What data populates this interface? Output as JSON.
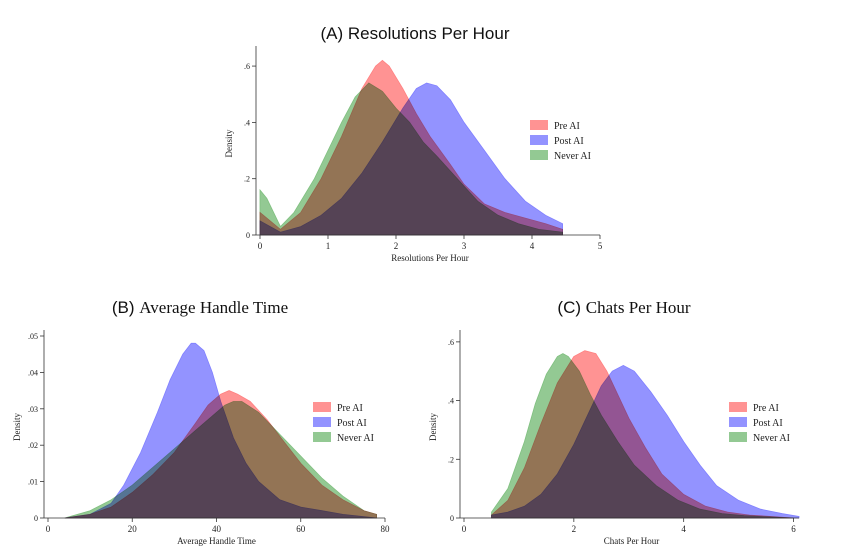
{
  "chart_data": [
    {
      "id": "A",
      "type": "area",
      "title_letter": "(A)",
      "title_name": "Resolutions Per Hour",
      "xlabel": "Resolutions Per Hour",
      "ylabel": "Density",
      "xlim": [
        0,
        5
      ],
      "ylim": [
        0,
        0.65
      ],
      "xticks": [
        0,
        1,
        2,
        3,
        4,
        5
      ],
      "xtick_labels": [
        "0",
        "1",
        "2",
        "3",
        "4",
        "5"
      ],
      "yticks": [
        0,
        0.2,
        0.4,
        0.6
      ],
      "ytick_labels": [
        "0",
        ".2",
        ".4",
        ".6"
      ],
      "legend_position": "right",
      "series": [
        {
          "name": "Pre AI",
          "color": "#ff8080",
          "x": [
            0,
            0.15,
            0.3,
            0.6,
            0.9,
            1.2,
            1.5,
            1.7,
            1.8,
            1.9,
            2.1,
            2.3,
            2.5,
            2.8,
            3.0,
            3.3,
            3.6,
            3.9,
            4.2,
            4.45
          ],
          "y": [
            0.08,
            0.05,
            0.02,
            0.08,
            0.2,
            0.35,
            0.52,
            0.6,
            0.62,
            0.6,
            0.52,
            0.43,
            0.35,
            0.25,
            0.18,
            0.11,
            0.08,
            0.06,
            0.04,
            0.02
          ]
        },
        {
          "name": "Post AI",
          "color": "#8080ff",
          "x": [
            0,
            0.15,
            0.3,
            0.6,
            0.9,
            1.2,
            1.5,
            1.8,
            2.1,
            2.3,
            2.45,
            2.6,
            2.8,
            3.0,
            3.3,
            3.6,
            3.9,
            4.2,
            4.45
          ],
          "y": [
            0.05,
            0.03,
            0.01,
            0.03,
            0.07,
            0.13,
            0.22,
            0.33,
            0.45,
            0.52,
            0.54,
            0.53,
            0.48,
            0.4,
            0.3,
            0.2,
            0.12,
            0.07,
            0.04
          ]
        },
        {
          "name": "Never AI",
          "color": "#80c080",
          "x": [
            0,
            0.1,
            0.3,
            0.5,
            0.8,
            1.0,
            1.2,
            1.4,
            1.6,
            1.8,
            2.0,
            2.2,
            2.4,
            2.6,
            2.9,
            3.2,
            3.5,
            3.8,
            4.1,
            4.45
          ],
          "y": [
            0.16,
            0.13,
            0.03,
            0.08,
            0.2,
            0.3,
            0.4,
            0.49,
            0.54,
            0.51,
            0.45,
            0.4,
            0.33,
            0.28,
            0.2,
            0.12,
            0.07,
            0.04,
            0.02,
            0.01
          ]
        }
      ]
    },
    {
      "id": "B",
      "type": "area",
      "title_letter": "(B)",
      "title_name": "Average Handle Time",
      "xlabel": "Average Handle Time",
      "ylabel": "Density",
      "xlim": [
        0,
        80
      ],
      "ylim": [
        0,
        0.05
      ],
      "xticks": [
        0,
        20,
        40,
        60,
        80
      ],
      "xtick_labels": [
        "0",
        "20",
        "40",
        "60",
        "80"
      ],
      "yticks": [
        0,
        0.01,
        0.02,
        0.03,
        0.04,
        0.05
      ],
      "ytick_labels": [
        "0",
        ".01",
        ".02",
        ".03",
        ".04",
        ".05"
      ],
      "legend_position": "right",
      "series": [
        {
          "name": "Pre AI",
          "color": "#ff8080",
          "x": [
            4,
            10,
            15,
            20,
            25,
            30,
            35,
            38,
            41,
            43,
            45,
            48,
            52,
            56,
            60,
            65,
            70,
            75,
            78
          ],
          "y": [
            0,
            0.001,
            0.003,
            0.007,
            0.012,
            0.018,
            0.026,
            0.031,
            0.034,
            0.035,
            0.034,
            0.032,
            0.027,
            0.021,
            0.015,
            0.009,
            0.005,
            0.002,
            0.001
          ]
        },
        {
          "name": "Post AI",
          "color": "#8080ff",
          "x": [
            4,
            10,
            15,
            18,
            22,
            26,
            29,
            32,
            34,
            35,
            37,
            39,
            41,
            44,
            47,
            50,
            55,
            60,
            65,
            70,
            78
          ],
          "y": [
            0,
            0.001,
            0.004,
            0.009,
            0.018,
            0.029,
            0.038,
            0.045,
            0.048,
            0.048,
            0.046,
            0.04,
            0.032,
            0.022,
            0.015,
            0.01,
            0.005,
            0.003,
            0.002,
            0.001,
            0
          ]
        },
        {
          "name": "Never AI",
          "color": "#80c080",
          "x": [
            4,
            10,
            15,
            20,
            25,
            30,
            35,
            40,
            42,
            44,
            46,
            50,
            55,
            60,
            65,
            70,
            75,
            78
          ],
          "y": [
            0,
            0.002,
            0.005,
            0.009,
            0.014,
            0.019,
            0.024,
            0.029,
            0.031,
            0.032,
            0.032,
            0.029,
            0.023,
            0.017,
            0.011,
            0.006,
            0.002,
            0.001
          ]
        }
      ]
    },
    {
      "id": "C",
      "type": "area",
      "title_letter": "(C)",
      "title_name": "Chats Per Hour",
      "xlabel": "Chats Per Hour",
      "ylabel": "Density",
      "xlim": [
        0,
        6.1
      ],
      "ylim": [
        0,
        0.62
      ],
      "xticks": [
        0,
        2,
        4,
        6
      ],
      "xtick_labels": [
        "0",
        "2",
        "4",
        "6"
      ],
      "yticks": [
        0,
        0.2,
        0.4,
        0.6
      ],
      "ytick_labels": [
        "0",
        ".2",
        ".4",
        ".6"
      ],
      "legend_position": "right",
      "series": [
        {
          "name": "Pre AI",
          "color": "#ff8080",
          "x": [
            0.5,
            0.8,
            1.1,
            1.4,
            1.7,
            2.0,
            2.2,
            2.4,
            2.6,
            2.8,
            3.0,
            3.3,
            3.6,
            4.0,
            4.4,
            4.8,
            5.2,
            5.6,
            6.0
          ],
          "y": [
            0.01,
            0.06,
            0.17,
            0.32,
            0.46,
            0.55,
            0.57,
            0.56,
            0.5,
            0.42,
            0.34,
            0.24,
            0.15,
            0.08,
            0.04,
            0.02,
            0.01,
            0.005,
            0
          ]
        },
        {
          "name": "Post AI",
          "color": "#8080ff",
          "x": [
            0.5,
            0.8,
            1.1,
            1.4,
            1.7,
            2.0,
            2.3,
            2.5,
            2.7,
            2.9,
            3.1,
            3.4,
            3.7,
            4.0,
            4.3,
            4.6,
            5.0,
            5.4,
            5.8,
            6.1
          ],
          "y": [
            0.01,
            0.02,
            0.04,
            0.08,
            0.15,
            0.25,
            0.37,
            0.45,
            0.5,
            0.52,
            0.5,
            0.43,
            0.35,
            0.26,
            0.18,
            0.11,
            0.06,
            0.03,
            0.015,
            0.005
          ]
        },
        {
          "name": "Never AI",
          "color": "#80c080",
          "x": [
            0.5,
            0.8,
            1.1,
            1.3,
            1.5,
            1.7,
            1.8,
            1.9,
            2.1,
            2.3,
            2.5,
            2.8,
            3.1,
            3.5,
            3.9,
            4.3,
            4.7,
            5.1,
            5.5,
            6.0
          ],
          "y": [
            0.02,
            0.1,
            0.26,
            0.39,
            0.49,
            0.55,
            0.56,
            0.55,
            0.5,
            0.42,
            0.35,
            0.26,
            0.18,
            0.11,
            0.06,
            0.03,
            0.015,
            0.008,
            0.004,
            0
          ]
        }
      ]
    }
  ]
}
